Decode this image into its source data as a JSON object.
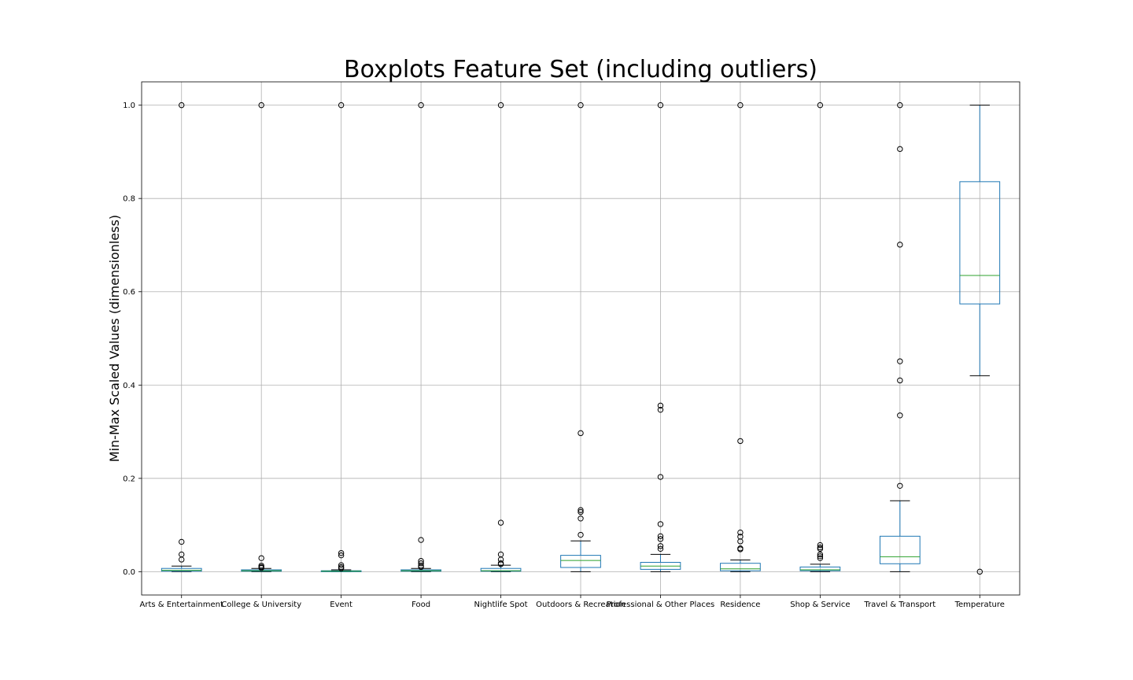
{
  "chart_data": {
    "type": "boxplot",
    "title": "Boxplots Feature Set (including outliers)",
    "xlabel": "",
    "ylabel": "Min-Max Scaled Values (dimensionless)",
    "ylim": [
      -0.05,
      1.05
    ],
    "yticks": [
      "0.0",
      "0.2",
      "0.4",
      "0.6",
      "0.8",
      "1.0"
    ],
    "grid": true,
    "colors": {
      "box": "#1f77b4",
      "median": "#2ca02c",
      "whisker_cap": "#000000",
      "flier": "#000000",
      "grid": "#b0b0b0"
    },
    "series": [
      {
        "name": "Arts & Entertainment",
        "whislo": 0.0,
        "q1": 0.001,
        "median": 0.003,
        "q3": 0.007,
        "whishi": 0.012,
        "fliers": [
          1.0,
          0.064,
          0.037,
          0.026
        ]
      },
      {
        "name": "College & University",
        "whislo": 0.0,
        "q1": 0.001,
        "median": 0.002,
        "q3": 0.004,
        "whishi": 0.007,
        "fliers": [
          1.0,
          0.029,
          0.013,
          0.01,
          0.008
        ]
      },
      {
        "name": "Event",
        "whislo": 0.0,
        "q1": 0.0,
        "median": 0.001,
        "q3": 0.002,
        "whishi": 0.004,
        "fliers": [
          1.0,
          0.04,
          0.035,
          0.014,
          0.01,
          0.007
        ]
      },
      {
        "name": "Food",
        "whislo": 0.0,
        "q1": 0.001,
        "median": 0.002,
        "q3": 0.004,
        "whishi": 0.007,
        "fliers": [
          1.0,
          0.068,
          0.023,
          0.018,
          0.013,
          0.01
        ]
      },
      {
        "name": "Nightlife Spot",
        "whislo": 0.0,
        "q1": 0.001,
        "median": 0.002,
        "q3": 0.007,
        "whishi": 0.014,
        "fliers": [
          1.0,
          0.105,
          0.037,
          0.026,
          0.018,
          0.016
        ]
      },
      {
        "name": "Outdoors & Recreation",
        "whislo": 0.0,
        "q1": 0.009,
        "median": 0.024,
        "q3": 0.035,
        "whishi": 0.066,
        "fliers": [
          1.0,
          0.297,
          0.132,
          0.128,
          0.114,
          0.079
        ]
      },
      {
        "name": "Professional & Other Places",
        "whislo": 0.0,
        "q1": 0.005,
        "median": 0.012,
        "q3": 0.02,
        "whishi": 0.037,
        "fliers": [
          1.0,
          0.356,
          0.347,
          0.203,
          0.102,
          0.076,
          0.07,
          0.055,
          0.049
        ]
      },
      {
        "name": "Residence",
        "whislo": 0.0,
        "q1": 0.002,
        "median": 0.006,
        "q3": 0.018,
        "whishi": 0.025,
        "fliers": [
          1.0,
          0.28,
          0.084,
          0.075,
          0.065,
          0.05,
          0.048
        ]
      },
      {
        "name": "Shop & Service",
        "whislo": 0.0,
        "q1": 0.002,
        "median": 0.004,
        "q3": 0.01,
        "whishi": 0.016,
        "fliers": [
          1.0,
          0.057,
          0.052,
          0.049,
          0.037,
          0.033,
          0.029
        ]
      },
      {
        "name": "Travel & Transport",
        "whislo": 0.0,
        "q1": 0.017,
        "median": 0.032,
        "q3": 0.076,
        "whishi": 0.152,
        "fliers": [
          1.0,
          0.906,
          0.701,
          0.451,
          0.41,
          0.335,
          0.184
        ]
      },
      {
        "name": "Temperature",
        "whislo": 0.42,
        "q1": 0.574,
        "median": 0.635,
        "q3": 0.836,
        "whishi": 1.0,
        "fliers": [
          0.0
        ]
      }
    ]
  }
}
